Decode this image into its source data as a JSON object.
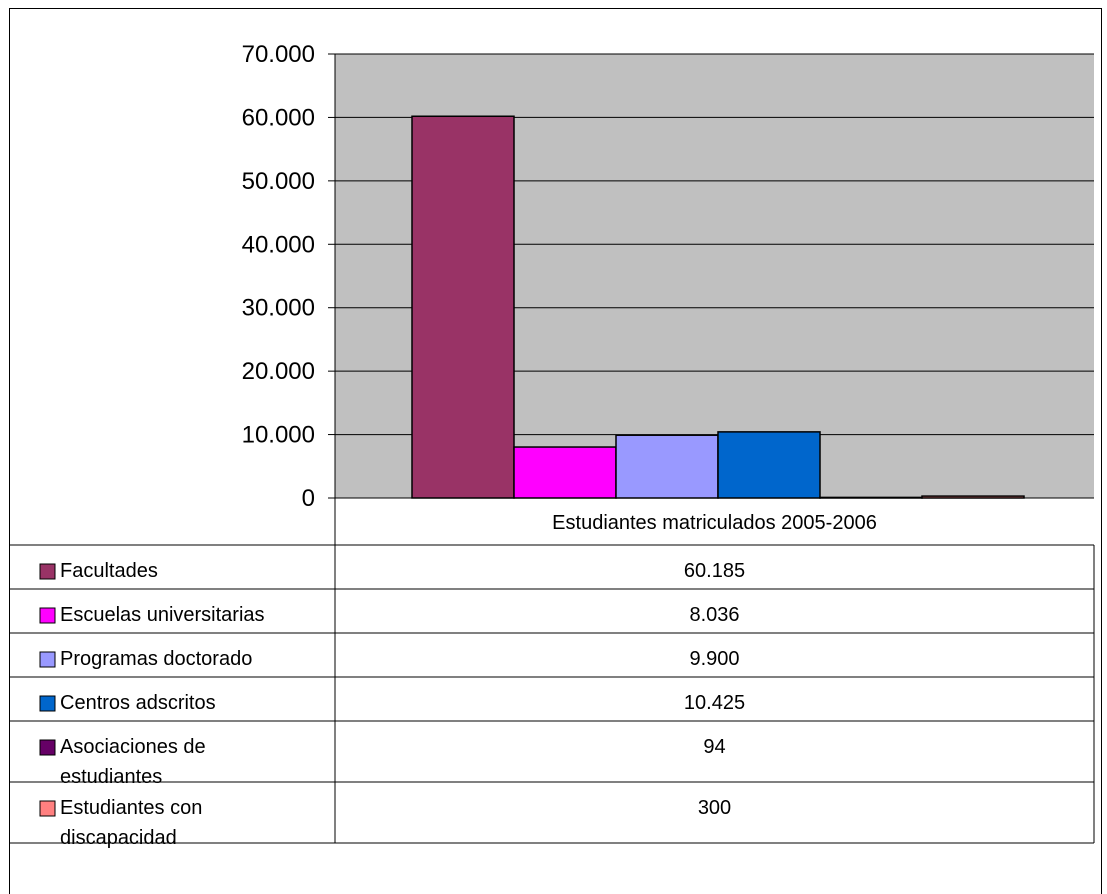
{
  "chart_data": {
    "type": "bar",
    "categories": [
      "Estudiantes matriculados 2005-2006"
    ],
    "series": [
      {
        "name": "Facultades",
        "value": 60185,
        "label": "60.185",
        "color": "#993366"
      },
      {
        "name": "Escuelas universitarias",
        "value": 8036,
        "label": "8.036",
        "color": "#ff00ff"
      },
      {
        "name": "Programas doctorado",
        "value": 9900,
        "label": "9.900",
        "color": "#9999ff"
      },
      {
        "name": "Centros adscritos",
        "value": 10425,
        "label": "10.425",
        "color": "#0066cc"
      },
      {
        "name": "Asociaciones de estudiantes",
        "value": 94,
        "label": "94",
        "color": "#660066"
      },
      {
        "name": "Estudiantes con discapacidad",
        "value": 300,
        "label": "300",
        "color": "#ff8080"
      }
    ],
    "yticks": [
      "0",
      "10.000",
      "20.000",
      "30.000",
      "40.000",
      "50.000",
      "60.000",
      "70.000"
    ],
    "ylim": [
      0,
      70000
    ],
    "grid": true,
    "plot_background": "#c0c0c0",
    "legend": "data-table"
  }
}
